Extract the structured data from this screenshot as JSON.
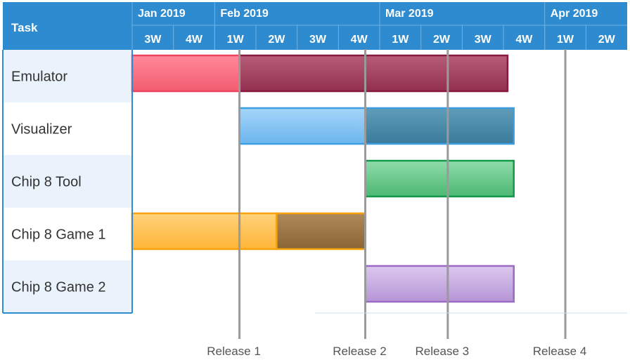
{
  "chart_data": {
    "type": "gantt",
    "header_label": "Task",
    "months": [
      {
        "label": "Jan 2019",
        "start": 0,
        "span": 2
      },
      {
        "label": "Feb 2019",
        "start": 2,
        "span": 4
      },
      {
        "label": "Mar 2019",
        "start": 6,
        "span": 4
      },
      {
        "label": "Apr 2019",
        "start": 10,
        "span": 2
      }
    ],
    "weeks": [
      "3W",
      "4W",
      "1W",
      "2W",
      "3W",
      "4W",
      "1W",
      "2W",
      "3W",
      "4W",
      "1W",
      "2W"
    ],
    "tasks": [
      {
        "name": "Emulator",
        "segments": [
          {
            "start": 0,
            "end": 2.6,
            "fill_top": "#ff8a9a",
            "fill_bottom": "#f25c70",
            "stroke": "#ee4460"
          },
          {
            "start": 2.6,
            "end": 9.1,
            "fill_top": "#b65d79",
            "fill_bottom": "#92304f",
            "stroke": "#8a1a3c"
          }
        ]
      },
      {
        "name": "Visualizer",
        "segments": [
          {
            "start": 2.6,
            "end": 5.65,
            "fill_top": "#a5d4f8",
            "fill_bottom": "#6cb6ee",
            "stroke": "#3d9ee0"
          },
          {
            "start": 5.65,
            "end": 9.25,
            "fill_top": "#5f9db9",
            "fill_bottom": "#3a7b9b",
            "stroke": "#3d9ee0"
          }
        ]
      },
      {
        "name": "Chip 8 Tool",
        "segments": [
          {
            "start": 5.65,
            "end": 9.25,
            "fill_top": "#8fdcaa",
            "fill_bottom": "#4cb872",
            "stroke": "#14994a"
          }
        ]
      },
      {
        "name": "Chip 8 Game 1",
        "segments": [
          {
            "start": 0,
            "end": 3.5,
            "fill_top": "#ffd27a",
            "fill_bottom": "#ffb538",
            "stroke": "#f6a20c"
          },
          {
            "start": 3.5,
            "end": 5.65,
            "fill_top": "#ae8a5a",
            "fill_bottom": "#8a6535",
            "stroke": "#f6a20c"
          }
        ]
      },
      {
        "name": "Chip 8 Game 2",
        "segments": [
          {
            "start": 5.65,
            "end": 9.25,
            "fill_top": "#dcc8ee",
            "fill_bottom": "#b594d6",
            "stroke": "#9a6ac4"
          }
        ]
      }
    ],
    "milestones": [
      {
        "label": "Release 1",
        "at": 2.6
      },
      {
        "label": "Release 2",
        "at": 5.65
      },
      {
        "label": "Release 3",
        "at": 7.65
      },
      {
        "label": "Release 4",
        "at": 10.5
      }
    ],
    "colors": {
      "header": "#2e8bd0",
      "header_line": "#6fb2e2",
      "row_alt": "#eaf3fb",
      "row_plain": "#ffffff",
      "border": "#2e8bd0",
      "milestone_line": "#9a9a9a"
    }
  }
}
